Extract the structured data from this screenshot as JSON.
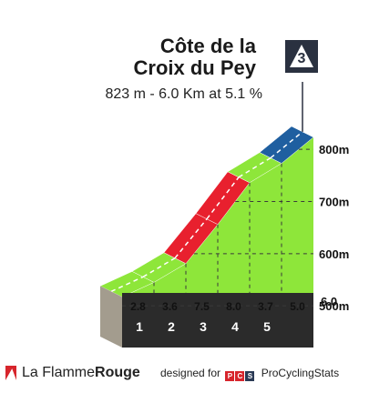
{
  "climb": {
    "title_line1": "Côte de la",
    "title_line2": "Croix du Pey",
    "subtitle": "823 m - 6.0 Km at 5.1 %",
    "category_badge": "3"
  },
  "chart_data": {
    "type": "area",
    "x": [
      0,
      1,
      2,
      3,
      4,
      5,
      6
    ],
    "elevation_m": [
      517,
      545,
      581,
      656,
      736,
      773,
      823
    ],
    "segment_gradients_pct": [
      2.8,
      3.6,
      7.5,
      8.0,
      3.7,
      5.0
    ],
    "km_markers": [
      "1",
      "2",
      "3",
      "4",
      "5"
    ],
    "distance_end_label": "6.0",
    "y_tick_labels": [
      "500m",
      "600m",
      "700m",
      "800m"
    ],
    "y_ticks": [
      500,
      600,
      700,
      800
    ],
    "ylim": [
      455,
      835
    ],
    "colors": {
      "low_gradient": "#8ee63a",
      "mid_gradient": "#e8202e",
      "top_gradient": "#1f5fa0",
      "base_band": "#2b2b2b",
      "start_wall": "#a39c8e"
    },
    "segment_colors": [
      "low_gradient",
      "low_gradient",
      "mid_gradient",
      "mid_gradient",
      "low_gradient",
      "top_gradient"
    ]
  },
  "footer": {
    "brand_part1": "La Flamme",
    "brand_part2": "Rouge",
    "credit_prefix": "designed for",
    "pcs_letters": [
      "P",
      "C",
      "S"
    ],
    "credit_site": "ProCyclingStats"
  }
}
